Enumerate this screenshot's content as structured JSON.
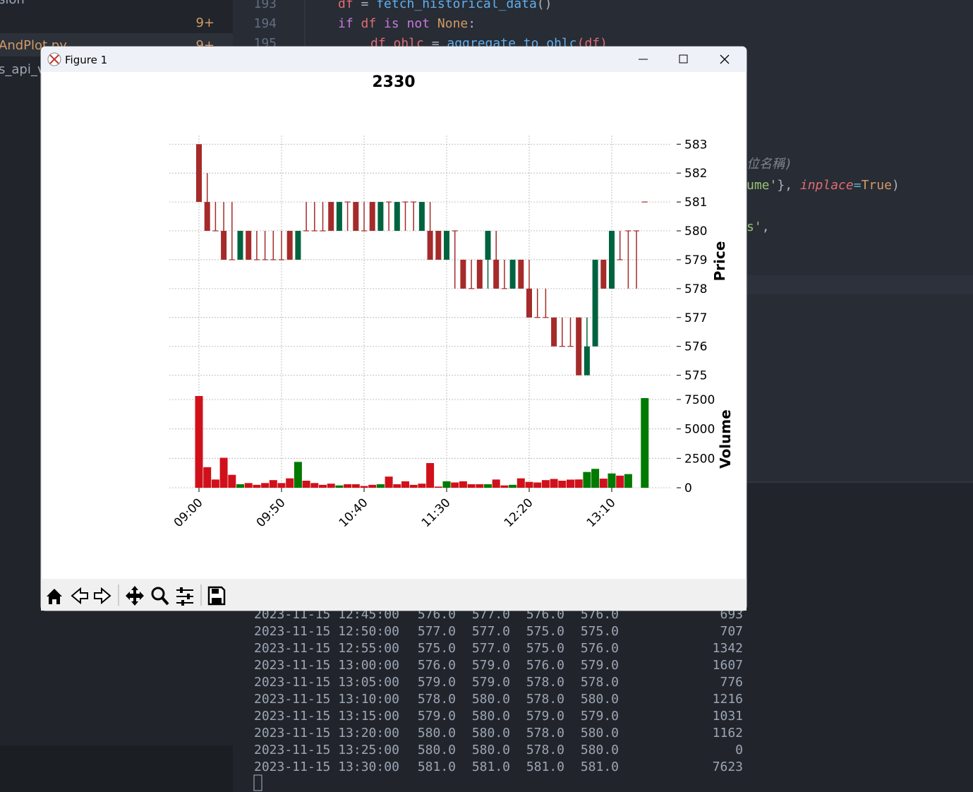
{
  "sidebar": {
    "items": [
      "sion",
      "9+",
      "AndPlot.py",
      "9+",
      "s_api_v"
    ]
  },
  "editor": {
    "line_numbers": [
      "193",
      "194",
      "195"
    ],
    "lines": [
      [
        {
          "text": "df",
          "color": "#e06c75"
        },
        {
          "text": " = ",
          "color": "#abb2bf"
        },
        {
          "text": "fetch_historical_data",
          "color": "#61afef"
        },
        {
          "text": "()",
          "color": "#abb2bf"
        }
      ],
      [
        {
          "text": "if",
          "color": "#c678dd"
        },
        {
          "text": " df ",
          "color": "#e06c75"
        },
        {
          "text": "is not",
          "color": "#c678dd"
        },
        {
          "text": " None",
          "color": "#d19a66"
        },
        {
          "text": ":",
          "color": "#abb2bf"
        }
      ],
      [
        {
          "text": "df_ohlc",
          "color": "#e06c75"
        },
        {
          "text": " = ",
          "color": "#abb2bf"
        },
        {
          "text": "aggregate_to_ohlc",
          "color": "#61afef"
        },
        {
          "text": "(df)",
          "color": "#e06c75"
        }
      ]
    ],
    "fragments": [
      [
        {
          "text": ")",
          "color": "#5c6370"
        }
      ],
      [
        {
          "text": "位名稱)",
          "color": "#7f848e",
          "italic": true
        }
      ],
      [
        {
          "text": "ume'",
          "color": "#98c379"
        },
        {
          "text": "}, ",
          "color": "#abb2bf"
        },
        {
          "text": "inplace",
          "color": "#e06c75",
          "italic": true
        },
        {
          "text": "=",
          "color": "#56b6c2"
        },
        {
          "text": "True",
          "color": "#d19a66"
        },
        {
          "text": ")",
          "color": "#abb2bf"
        }
      ],
      [
        {
          "text": "s'",
          "color": "#98c379"
        },
        {
          "text": ",",
          "color": "#abb2bf"
        }
      ]
    ]
  },
  "window": {
    "title": "Figure 1"
  },
  "chart_data": {
    "type": "candlestick",
    "title": "2330",
    "ylabel": "Price",
    "y2label": "Volume",
    "categories": [
      "09:00",
      null,
      null,
      null,
      null,
      null,
      null,
      null,
      null,
      null,
      "09:50",
      null,
      null,
      null,
      null,
      null,
      null,
      null,
      null,
      null,
      "10:40",
      null,
      null,
      null,
      null,
      null,
      null,
      null,
      null,
      null,
      "11:30",
      null,
      null,
      null,
      null,
      null,
      null,
      null,
      null,
      null,
      "12:20",
      null,
      null,
      null,
      null,
      null,
      null,
      null,
      null,
      null,
      "13:10",
      null,
      null,
      null,
      null
    ],
    "open": [
      583,
      581,
      580,
      580,
      579,
      579,
      580,
      579,
      579,
      579,
      579,
      580,
      579,
      580,
      580,
      580,
      581,
      580,
      581,
      581,
      580,
      581,
      580,
      581,
      580,
      581,
      581,
      580,
      580,
      580,
      579,
      580,
      579,
      578,
      579,
      579,
      579,
      578,
      578,
      579,
      578,
      577,
      577,
      577,
      576,
      576,
      577,
      575,
      576,
      579,
      578,
      579,
      580,
      580,
      581
    ],
    "high": [
      583,
      582,
      581,
      581,
      581,
      580,
      580,
      580,
      580,
      580,
      580,
      580,
      580,
      581,
      581,
      581,
      581,
      581,
      581,
      581,
      581,
      581,
      581,
      581,
      581,
      581,
      581,
      581,
      581,
      580,
      580,
      580,
      579,
      579,
      579,
      580,
      580,
      579,
      579,
      579,
      579,
      578,
      578,
      577,
      577,
      577,
      577,
      577,
      579,
      579,
      580,
      580,
      580,
      580,
      581
    ],
    "low": [
      581,
      580,
      580,
      579,
      579,
      579,
      579,
      579,
      579,
      579,
      579,
      579,
      579,
      580,
      580,
      580,
      580,
      580,
      580,
      580,
      580,
      580,
      580,
      580,
      580,
      580,
      580,
      580,
      579,
      579,
      579,
      578,
      578,
      578,
      578,
      578,
      578,
      578,
      578,
      578,
      577,
      577,
      577,
      576,
      576,
      576,
      575,
      575,
      576,
      578,
      578,
      579,
      578,
      578,
      581
    ],
    "close": [
      581,
      580,
      580,
      579,
      579,
      580,
      579,
      579,
      579,
      579,
      579,
      579,
      580,
      580,
      580,
      580,
      580,
      581,
      581,
      580,
      580,
      580,
      581,
      581,
      581,
      581,
      581,
      581,
      579,
      579,
      580,
      580,
      578,
      578,
      578,
      580,
      578,
      578,
      579,
      578,
      577,
      577,
      577,
      576,
      576,
      576,
      575,
      576,
      579,
      578,
      580,
      579,
      580,
      580,
      581
    ],
    "volume": [
      7800,
      1750,
      700,
      2550,
      1100,
      300,
      400,
      250,
      400,
      650,
      400,
      800,
      2200,
      600,
      400,
      250,
      350,
      200,
      300,
      300,
      150,
      250,
      300,
      950,
      300,
      550,
      250,
      350,
      2100,
      100,
      550,
      450,
      550,
      300,
      300,
      300,
      700,
      200,
      250,
      800,
      500,
      450,
      650,
      750,
      600,
      693,
      707,
      1342,
      1607,
      776,
      1216,
      1031,
      1162,
      0,
      7623
    ],
    "ylim": [
      574.6,
      583.3
    ],
    "yticks": [
      575,
      576,
      577,
      578,
      579,
      580,
      581,
      582,
      583
    ],
    "y2lim": [
      0,
      8580
    ],
    "y2ticks": [
      0,
      2500,
      5000,
      7500
    ],
    "up_color": "#006340",
    "down_color": "#a52a2a",
    "volume_up_color": "#007a00",
    "volume_down_color": "#d0111b",
    "grid": true
  },
  "terminal": {
    "rows": [
      [
        "2023-11-15 12:45:00",
        "576.0",
        "577.0",
        "576.0",
        "576.0",
        "693"
      ],
      [
        "2023-11-15 12:50:00",
        "577.0",
        "577.0",
        "575.0",
        "575.0",
        "707"
      ],
      [
        "2023-11-15 12:55:00",
        "575.0",
        "577.0",
        "575.0",
        "576.0",
        "1342"
      ],
      [
        "2023-11-15 13:00:00",
        "576.0",
        "579.0",
        "576.0",
        "579.0",
        "1607"
      ],
      [
        "2023-11-15 13:05:00",
        "579.0",
        "579.0",
        "578.0",
        "578.0",
        "776"
      ],
      [
        "2023-11-15 13:10:00",
        "578.0",
        "580.0",
        "578.0",
        "580.0",
        "1216"
      ],
      [
        "2023-11-15 13:15:00",
        "579.0",
        "580.0",
        "579.0",
        "579.0",
        "1031"
      ],
      [
        "2023-11-15 13:20:00",
        "580.0",
        "580.0",
        "578.0",
        "580.0",
        "1162"
      ],
      [
        "2023-11-15 13:25:00",
        "580.0",
        "580.0",
        "578.0",
        "580.0",
        "0"
      ],
      [
        "2023-11-15 13:30:00",
        "581.0",
        "581.0",
        "581.0",
        "581.0",
        "7623"
      ]
    ]
  }
}
